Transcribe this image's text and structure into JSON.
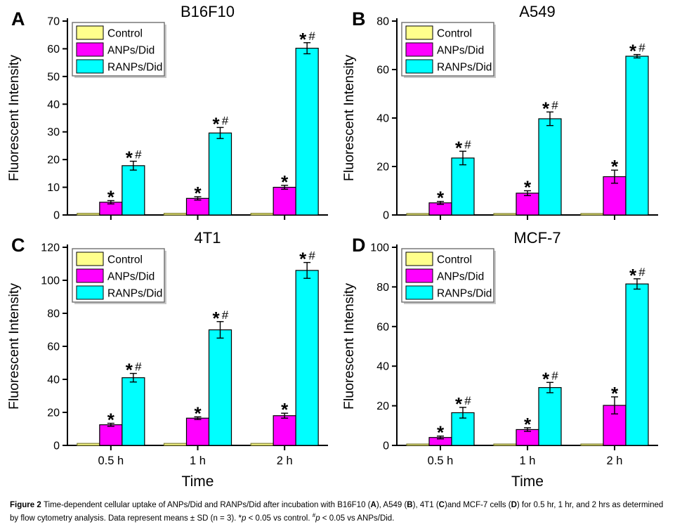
{
  "figure": {
    "caption_segments": [
      {
        "text": "Figure 2 ",
        "bold": true
      },
      {
        "text": "Time-dependent cellular uptake of ANPs/Did and RANPs/Did after incubation with B16F10 ("
      },
      {
        "text": "A",
        "bold": true
      },
      {
        "text": "), A549 ("
      },
      {
        "text": "B",
        "bold": true
      },
      {
        "text": "), 4T1 ("
      },
      {
        "text": "C",
        "bold": true
      },
      {
        "text": ")and MCF-7 cells ("
      },
      {
        "text": "D",
        "bold": true
      },
      {
        "text": ") for 0.5 hr, 1 hr, and 2 hrs as determined by flow cytometry analysis. Data represent means ± SD (n = 3). *"
      },
      {
        "text": "p",
        "italic": true
      },
      {
        "text": " < 0.05 vs control. "
      },
      {
        "text": "#",
        "super": true
      },
      {
        "text": "p",
        "italic": true
      },
      {
        "text": " < 0.05 vs ANPs/Did."
      }
    ]
  },
  "colors": {
    "control_fill": "#FFFF8C",
    "control_border": "#7d7d33",
    "anps_fill": "#FF00FF",
    "ranps_fill": "#00FFFF",
    "bar_border": "#000000",
    "axis": "#000000"
  },
  "chart_data": [
    {
      "type": "bar",
      "panel": "A",
      "title": "B16F10",
      "ylabel": "Fluorescent Intensity",
      "xlabel": "",
      "categories": [
        "0.5 h",
        "1 h",
        "2 h"
      ],
      "x_tick_labels_visible": false,
      "ylim": [
        0,
        70
      ],
      "ytick_step": 10,
      "legend_position": "top-left",
      "series": [
        {
          "name": "Control",
          "color": "#FFFF8C",
          "border": "#7d7d33",
          "values": [
            0.6,
            0.6,
            0.6
          ],
          "errors": [
            0,
            0,
            0
          ],
          "marker": ""
        },
        {
          "name": "ANPs/Did",
          "color": "#FF00FF",
          "border": "#000000",
          "values": [
            4.6,
            6.0,
            10.0
          ],
          "errors": [
            0.6,
            0.6,
            0.7
          ],
          "marker": "*"
        },
        {
          "name": "RANPs/Did",
          "color": "#00FFFF",
          "border": "#000000",
          "values": [
            17.8,
            29.6,
            60.2
          ],
          "errors": [
            1.6,
            2.0,
            2.0
          ],
          "marker": "*#"
        }
      ]
    },
    {
      "type": "bar",
      "panel": "B",
      "title": "A549",
      "ylabel": "Fluorescent Intensity",
      "xlabel": "",
      "categories": [
        "0.5 h",
        "1 h",
        "2 h"
      ],
      "x_tick_labels_visible": false,
      "ylim": [
        0,
        80
      ],
      "ytick_step": 20,
      "legend_position": "top-left",
      "series": [
        {
          "name": "Control",
          "color": "#FFFF8C",
          "border": "#7d7d33",
          "values": [
            0.6,
            0.6,
            0.6
          ],
          "errors": [
            0,
            0,
            0
          ],
          "marker": ""
        },
        {
          "name": "ANPs/Did",
          "color": "#FF00FF",
          "border": "#000000",
          "values": [
            5.0,
            9.0,
            15.8
          ],
          "errors": [
            0.6,
            1.0,
            2.7
          ],
          "marker": "*"
        },
        {
          "name": "RANPs/Did",
          "color": "#00FFFF",
          "border": "#000000",
          "values": [
            23.5,
            39.7,
            65.5
          ],
          "errors": [
            2.8,
            2.8,
            0.7
          ],
          "marker": "*#"
        }
      ]
    },
    {
      "type": "bar",
      "panel": "C",
      "title": "4T1",
      "ylabel": "Fluorescent Intensity",
      "xlabel": "Time",
      "categories": [
        "0.5 h",
        "1 h",
        "2 h"
      ],
      "x_tick_labels_visible": true,
      "ylim": [
        0,
        120
      ],
      "ytick_step": 20,
      "legend_position": "top-left",
      "series": [
        {
          "name": "Control",
          "color": "#FFFF8C",
          "border": "#7d7d33",
          "values": [
            1.2,
            1.2,
            1.2
          ],
          "errors": [
            0,
            0,
            0
          ],
          "marker": ""
        },
        {
          "name": "ANPs/Did",
          "color": "#FF00FF",
          "border": "#000000",
          "values": [
            12.5,
            16.5,
            18.0
          ],
          "errors": [
            0.9,
            0.8,
            1.5
          ],
          "marker": "*"
        },
        {
          "name": "RANPs/Did",
          "color": "#00FFFF",
          "border": "#000000",
          "values": [
            41.0,
            70.0,
            106.0
          ],
          "errors": [
            2.6,
            5.0,
            4.8
          ],
          "marker": "*#"
        }
      ]
    },
    {
      "type": "bar",
      "panel": "D",
      "title": "MCF-7",
      "ylabel": "Fluorescent Intensity",
      "xlabel": "Time",
      "categories": [
        "0.5 h",
        "1 h",
        "2 h"
      ],
      "x_tick_labels_visible": true,
      "ylim": [
        0,
        100
      ],
      "ytick_step": 20,
      "legend_position": "top-left",
      "series": [
        {
          "name": "Control",
          "color": "#FFFF8C",
          "border": "#7d7d33",
          "values": [
            0.7,
            0.7,
            0.7
          ],
          "errors": [
            0,
            0,
            0
          ],
          "marker": ""
        },
        {
          "name": "ANPs/Did",
          "color": "#FF00FF",
          "border": "#000000",
          "values": [
            4.0,
            8.0,
            20.2
          ],
          "errors": [
            0.7,
            0.9,
            4.3
          ],
          "marker": "*"
        },
        {
          "name": "RANPs/Did",
          "color": "#00FFFF",
          "border": "#000000",
          "values": [
            16.5,
            29.2,
            81.5
          ],
          "errors": [
            2.7,
            2.6,
            2.6
          ],
          "marker": "*#"
        }
      ]
    }
  ]
}
